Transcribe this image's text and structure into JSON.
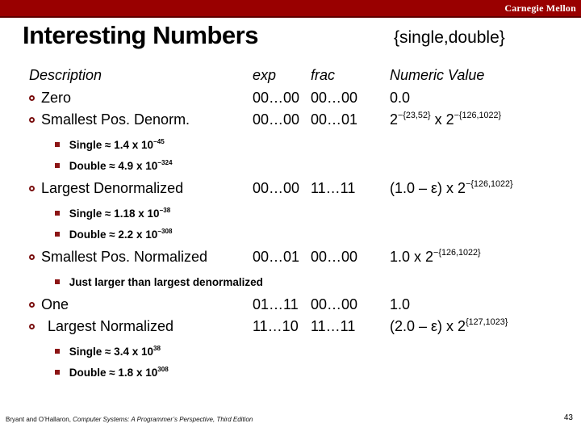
{
  "banner": {
    "brand": "Carnegie Mellon"
  },
  "title": "Interesting Numbers",
  "subtitle": "{single,double}",
  "columns": {
    "description": "Description",
    "exp": "exp",
    "frac": "frac",
    "value": "Numeric Value"
  },
  "rows": [
    {
      "type": "main",
      "description": "Zero",
      "exp": "00…00",
      "frac": "00…00",
      "value": [
        {
          "t": "0.0"
        }
      ]
    },
    {
      "type": "main",
      "description": "Smallest Pos. Denorm.",
      "exp": "00…00",
      "frac": "00…01",
      "value": [
        {
          "t": "2"
        },
        {
          "sup": "−{23,52}"
        },
        {
          "t": " x 2"
        },
        {
          "sup": "−{126,1022}"
        }
      ]
    },
    {
      "type": "sub",
      "text": [
        {
          "t": "Single ≈ 1.4 x 10"
        },
        {
          "sup": "−45"
        }
      ]
    },
    {
      "type": "sub",
      "text": [
        {
          "t": "Double ≈ 4.9 x 10"
        },
        {
          "sup": "−324"
        }
      ]
    },
    {
      "type": "main",
      "description": "Largest Denormalized",
      "exp": "00…00",
      "frac": "11…11",
      "value": [
        {
          "t": "(1.0 – ε) x 2"
        },
        {
          "sup": "−{126,1022}"
        }
      ]
    },
    {
      "type": "sub",
      "text": [
        {
          "t": "Single ≈ 1.18 x 10"
        },
        {
          "sup": "−38"
        }
      ]
    },
    {
      "type": "sub",
      "text": [
        {
          "t": "Double ≈ 2.2 x 10"
        },
        {
          "sup": "−308"
        }
      ]
    },
    {
      "type": "main",
      "description": "Smallest Pos. Normalized",
      "exp": "00…01",
      "frac": "00…00",
      "value": [
        {
          "t": "1.0 x 2"
        },
        {
          "sup": "−{126,1022}"
        }
      ]
    },
    {
      "type": "sub",
      "text": [
        {
          "t": "Just larger than largest denormalized"
        }
      ]
    },
    {
      "type": "main",
      "description": "One",
      "exp": "01…11",
      "frac": "00…00",
      "value": [
        {
          "t": "1.0"
        }
      ]
    },
    {
      "type": "main",
      "description": "Largest Normalized",
      "exp": "11…10",
      "frac": "11…11",
      "indent": true,
      "value": [
        {
          "t": "(2.0 – ε) x 2"
        },
        {
          "sup": "{127,1023}"
        }
      ]
    },
    {
      "type": "sub",
      "text": [
        {
          "t": "Single ≈ 3.4 x 10"
        },
        {
          "sup": "38"
        }
      ]
    },
    {
      "type": "sub",
      "text": [
        {
          "t": "Double ≈ 1.8 x 10"
        },
        {
          "sup": "308"
        }
      ]
    }
  ],
  "footer": {
    "credit_normal": "Bryant and O’Hallaron, ",
    "credit_italic": "Computer Systems: A Programmer’s Perspective, Third Edition",
    "page": "43"
  },
  "colors": {
    "banner": "#990000",
    "banner_edge": "#5e0000",
    "bullet_outline": "#7a1010",
    "sub_bullet": "#8c1515"
  }
}
